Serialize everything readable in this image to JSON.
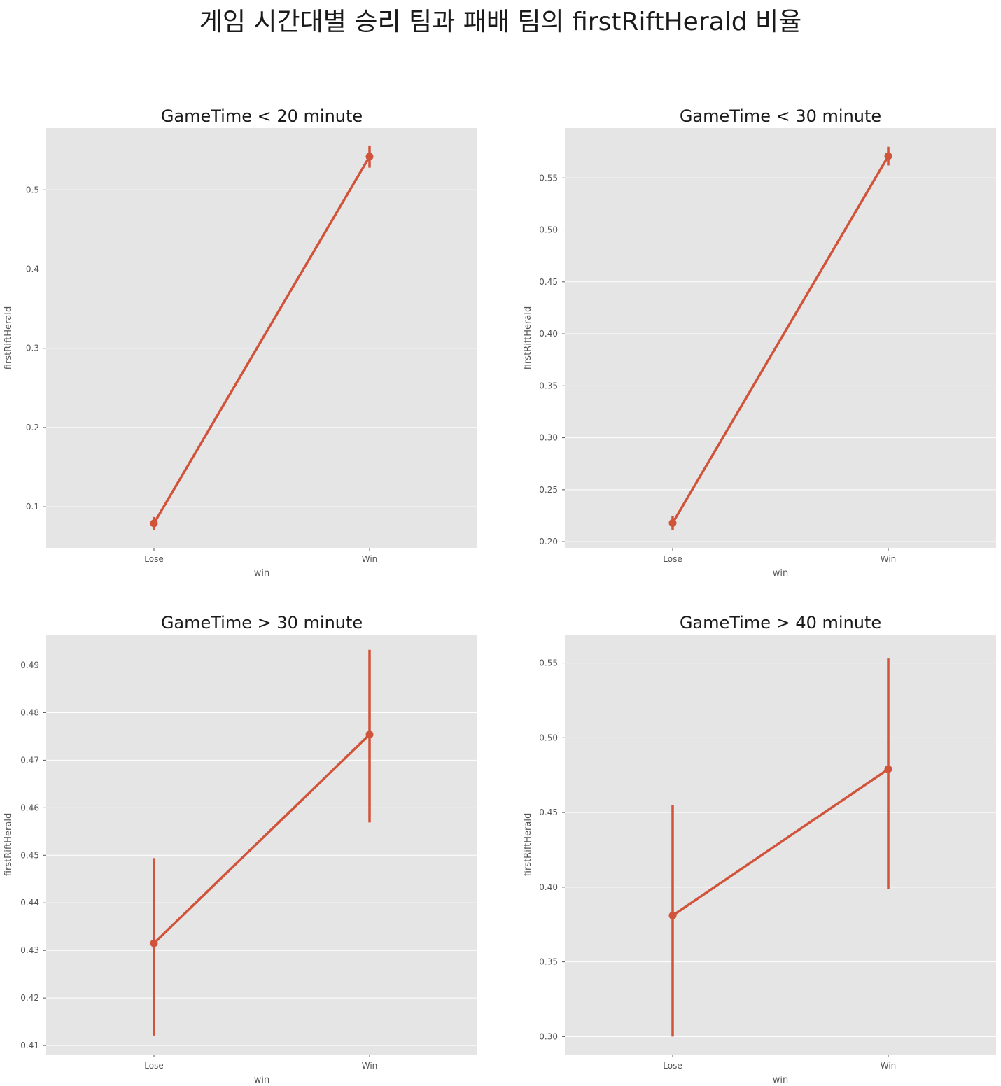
{
  "suptitle": "게임 시간대별 승리 팀과 패배 팀의 firstRiftHerald 비율",
  "colors": {
    "line": "#d1533a",
    "panel_bg": "#e5e5e5",
    "grid": "#ffffff",
    "tick_text": "#555555"
  },
  "chart_data": [
    {
      "type": "line",
      "title": "GameTime < 20 minute",
      "xlabel": "win",
      "ylabel": "firstRiftHerald",
      "categories": [
        "Lose",
        "Win"
      ],
      "values": [
        0.079,
        0.542
      ],
      "ci_low": [
        0.071,
        0.528
      ],
      "ci_high": [
        0.087,
        0.556
      ],
      "ylim": [
        0.048,
        0.578
      ],
      "yticks": [
        0.1,
        0.2,
        0.3,
        0.4,
        0.5
      ],
      "ytick_labels": [
        "0.1",
        "0.2",
        "0.3",
        "0.4",
        "0.5"
      ],
      "grid": true
    },
    {
      "type": "line",
      "title": "GameTime < 30 minute",
      "xlabel": "win",
      "ylabel": "firstRiftHerald",
      "categories": [
        "Lose",
        "Win"
      ],
      "values": [
        0.218,
        0.571
      ],
      "ci_low": [
        0.211,
        0.562
      ],
      "ci_high": [
        0.225,
        0.58
      ],
      "ylim": [
        0.194,
        0.598
      ],
      "yticks": [
        0.2,
        0.25,
        0.3,
        0.35,
        0.4,
        0.45,
        0.5,
        0.55
      ],
      "ytick_labels": [
        "0.20",
        "0.25",
        "0.30",
        "0.35",
        "0.40",
        "0.45",
        "0.50",
        "0.55"
      ],
      "grid": true
    },
    {
      "type": "line",
      "title": "GameTime > 30 minute",
      "xlabel": "win",
      "ylabel": "firstRiftHerald",
      "categories": [
        "Lose",
        "Win"
      ],
      "values": [
        0.4315,
        0.4754
      ],
      "ci_low": [
        0.4121,
        0.4569
      ],
      "ci_high": [
        0.4494,
        0.4932
      ],
      "ylim": [
        0.4081,
        0.4964
      ],
      "yticks": [
        0.41,
        0.42,
        0.43,
        0.44,
        0.45,
        0.46,
        0.47,
        0.48,
        0.49
      ],
      "ytick_labels": [
        "0.41",
        "0.42",
        "0.43",
        "0.44",
        "0.45",
        "0.46",
        "0.47",
        "0.48",
        "0.49"
      ],
      "grid": true
    },
    {
      "type": "line",
      "title": "GameTime > 40 minute",
      "xlabel": "win",
      "ylabel": "firstRiftHerald",
      "categories": [
        "Lose",
        "Win"
      ],
      "values": [
        0.381,
        0.479
      ],
      "ci_low": [
        0.3,
        0.399
      ],
      "ci_high": [
        0.455,
        0.553
      ],
      "ylim": [
        0.288,
        0.569
      ],
      "yticks": [
        0.3,
        0.35,
        0.4,
        0.45,
        0.5,
        0.55
      ],
      "ytick_labels": [
        "0.30",
        "0.35",
        "0.40",
        "0.45",
        "0.50",
        "0.55"
      ],
      "grid": true
    }
  ]
}
